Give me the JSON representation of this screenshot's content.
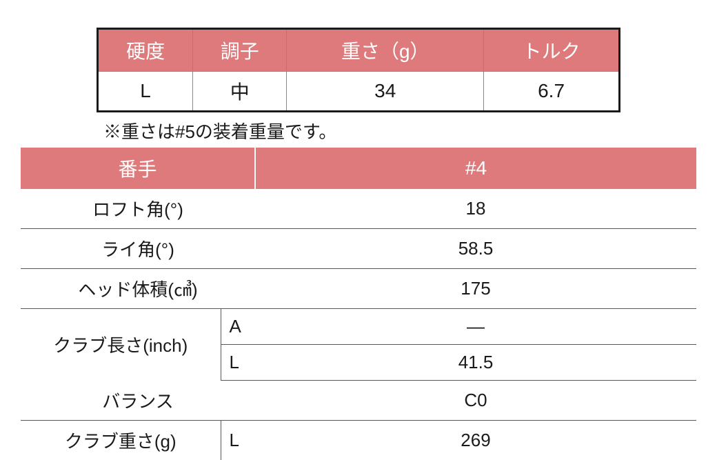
{
  "table1": {
    "header_bg": "#de7a7b",
    "header_fg": "#ffffff",
    "border_color": "#1a1a1a",
    "columns": [
      "硬度",
      "調子",
      "重さ（g）",
      "トルク"
    ],
    "row": [
      "L",
      "中",
      "34",
      "6.7"
    ]
  },
  "note": "※重さは#5の装着重量です。",
  "table2": {
    "header_bg": "#de7a7b",
    "header_fg": "#ffffff",
    "row_border": "#555555",
    "columns": [
      "番手",
      "#4"
    ],
    "rows": {
      "loft": {
        "label": "ロフト角(°)",
        "sub": "",
        "value": "18"
      },
      "lie": {
        "label": "ライ角(°)",
        "sub": "",
        "value": "58.5"
      },
      "volume": {
        "label": "ヘッド体積(㎤)",
        "sub": "",
        "value": "175"
      },
      "len_a": {
        "label": "クラブ長さ(inch)",
        "sub": "A",
        "value": "―"
      },
      "len_l": {
        "label": "",
        "sub": "L",
        "value": "41.5"
      },
      "balance": {
        "label": "バランス",
        "sub": "",
        "value": "C0"
      },
      "weight": {
        "label": "クラブ重さ(g)",
        "sub": "L",
        "value": "269"
      }
    }
  }
}
